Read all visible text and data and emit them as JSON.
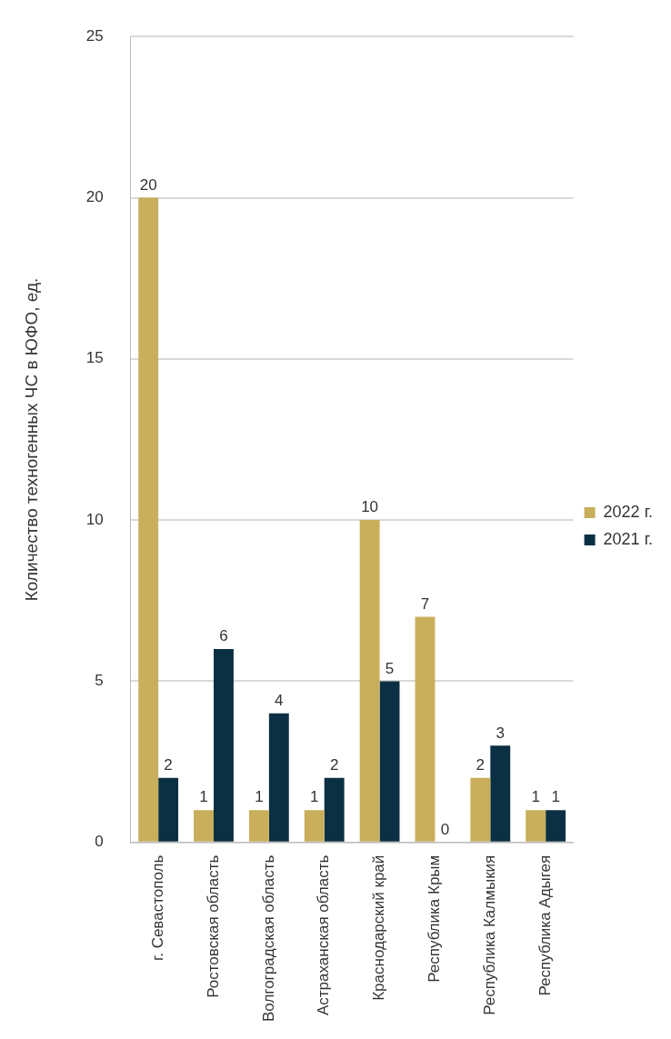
{
  "chart_data": {
    "type": "bar",
    "ylabel": "Количество техногенных ЧС в ЮФО, ед.",
    "categories": [
      "г. Севастополь",
      "Ростовская область",
      "Волгоградская область",
      "Астраханская область",
      "Краснодарский край",
      "Республика Крым",
      "Республика Калмыкия",
      "Республика Адыгея"
    ],
    "series": [
      {
        "name": "2022 г.",
        "color": "#c9ae5b",
        "values": [
          20,
          1,
          1,
          1,
          10,
          7,
          2,
          1
        ]
      },
      {
        "name": "2021 г.",
        "color": "#0c3043",
        "values": [
          2,
          6,
          4,
          2,
          5,
          0,
          3,
          1
        ]
      }
    ],
    "ylim": [
      0,
      25
    ],
    "yticks": [
      0,
      5,
      10,
      15,
      20,
      25
    ],
    "grid": "y",
    "legend": "right",
    "data_labels": true
  }
}
